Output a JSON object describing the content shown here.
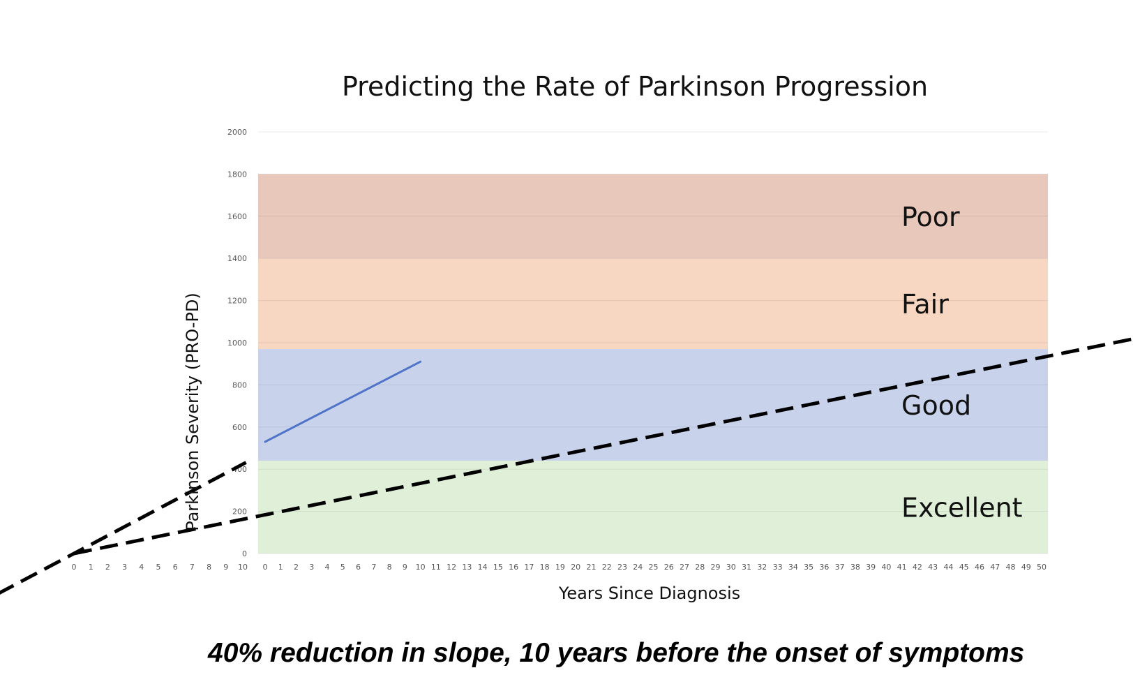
{
  "chart_data": {
    "type": "line",
    "title": "Predicting the Rate of Parkinson Progression",
    "xlabel": "Years Since Diagnosis",
    "ylabel": "Parkinson Severity (PRO-PD)",
    "ylim": [
      0,
      2000
    ],
    "y_ticks": [
      "2000",
      "1800",
      "1600",
      "1400",
      "1200",
      "1000",
      "800",
      "600",
      "400",
      "200",
      "0"
    ],
    "x_ticks_pre": [
      "0",
      "1",
      "2",
      "3",
      "4",
      "5",
      "6",
      "7",
      "8",
      "9",
      "10"
    ],
    "x_ticks_main": [
      "0",
      "1",
      "2",
      "3",
      "4",
      "5",
      "6",
      "7",
      "8",
      "9",
      "10",
      "11",
      "12",
      "13",
      "14",
      "15",
      "16",
      "17",
      "18",
      "19",
      "20",
      "21",
      "22",
      "23",
      "24",
      "25",
      "26",
      "27",
      "28",
      "29",
      "30",
      "31",
      "32",
      "33",
      "34",
      "35",
      "36",
      "37",
      "38",
      "39",
      "40",
      "41",
      "42",
      "43",
      "44",
      "45",
      "46",
      "47",
      "48",
      "49",
      "50"
    ],
    "zones": [
      {
        "label": "Poor",
        "from": 1400,
        "to": 1800,
        "color": "#e9c8bc"
      },
      {
        "label": "Fair",
        "from": 970,
        "to": 1400,
        "color": "#f7d6c2"
      },
      {
        "label": "Good",
        "from": 440,
        "to": 970,
        "color": "#c8d3eb"
      },
      {
        "label": "Excellent",
        "from": 0,
        "to": 440,
        "color": "#e0f0d8"
      }
    ],
    "series": [
      {
        "style": "solid",
        "color": "#4f73c8",
        "x": [
          0,
          10
        ],
        "y": [
          530,
          910
        ]
      }
    ],
    "projections": [
      {
        "style": "dashed",
        "x": [
          -10,
          0
        ],
        "y": [
          0,
          480
        ]
      },
      {
        "style": "dashed",
        "x": [
          -10,
          50
        ],
        "y": [
          0,
          930
        ]
      }
    ],
    "grid": true,
    "legend": "none"
  },
  "caption": "40% reduction in slope, 10 years before the onset of symptoms"
}
